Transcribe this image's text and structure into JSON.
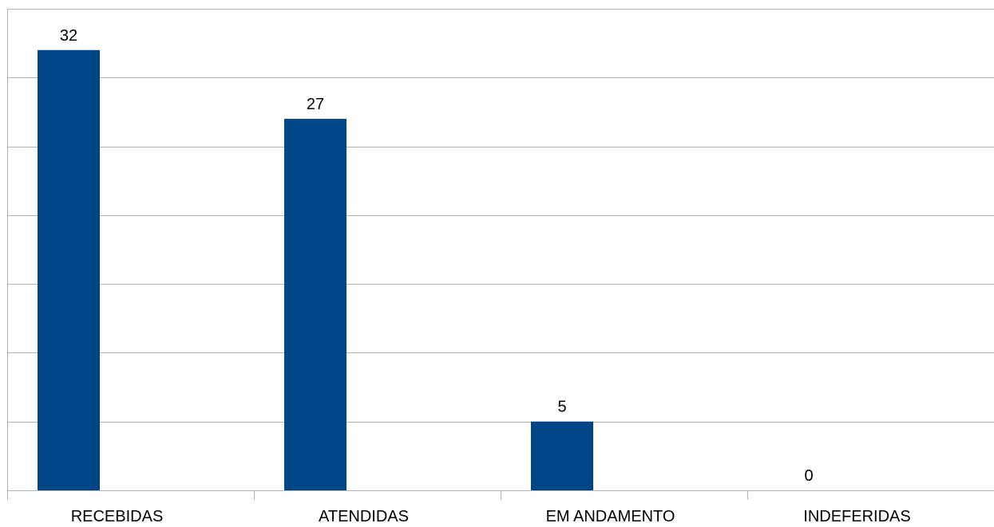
{
  "chart_data": {
    "type": "bar",
    "categories": [
      "RECEBIDAS",
      "ATENDIDAS",
      "EM ANDAMENTO",
      "INDEFERIDAS"
    ],
    "values": [
      32,
      27,
      5,
      0
    ],
    "title": "",
    "xlabel": "",
    "ylabel": "",
    "ylim": [
      0,
      35
    ],
    "y_gridline_step": 5,
    "grid": true,
    "legend": "none",
    "bar_color": "#004586",
    "grid_color": "#b3b3b3",
    "data_labels": true
  }
}
